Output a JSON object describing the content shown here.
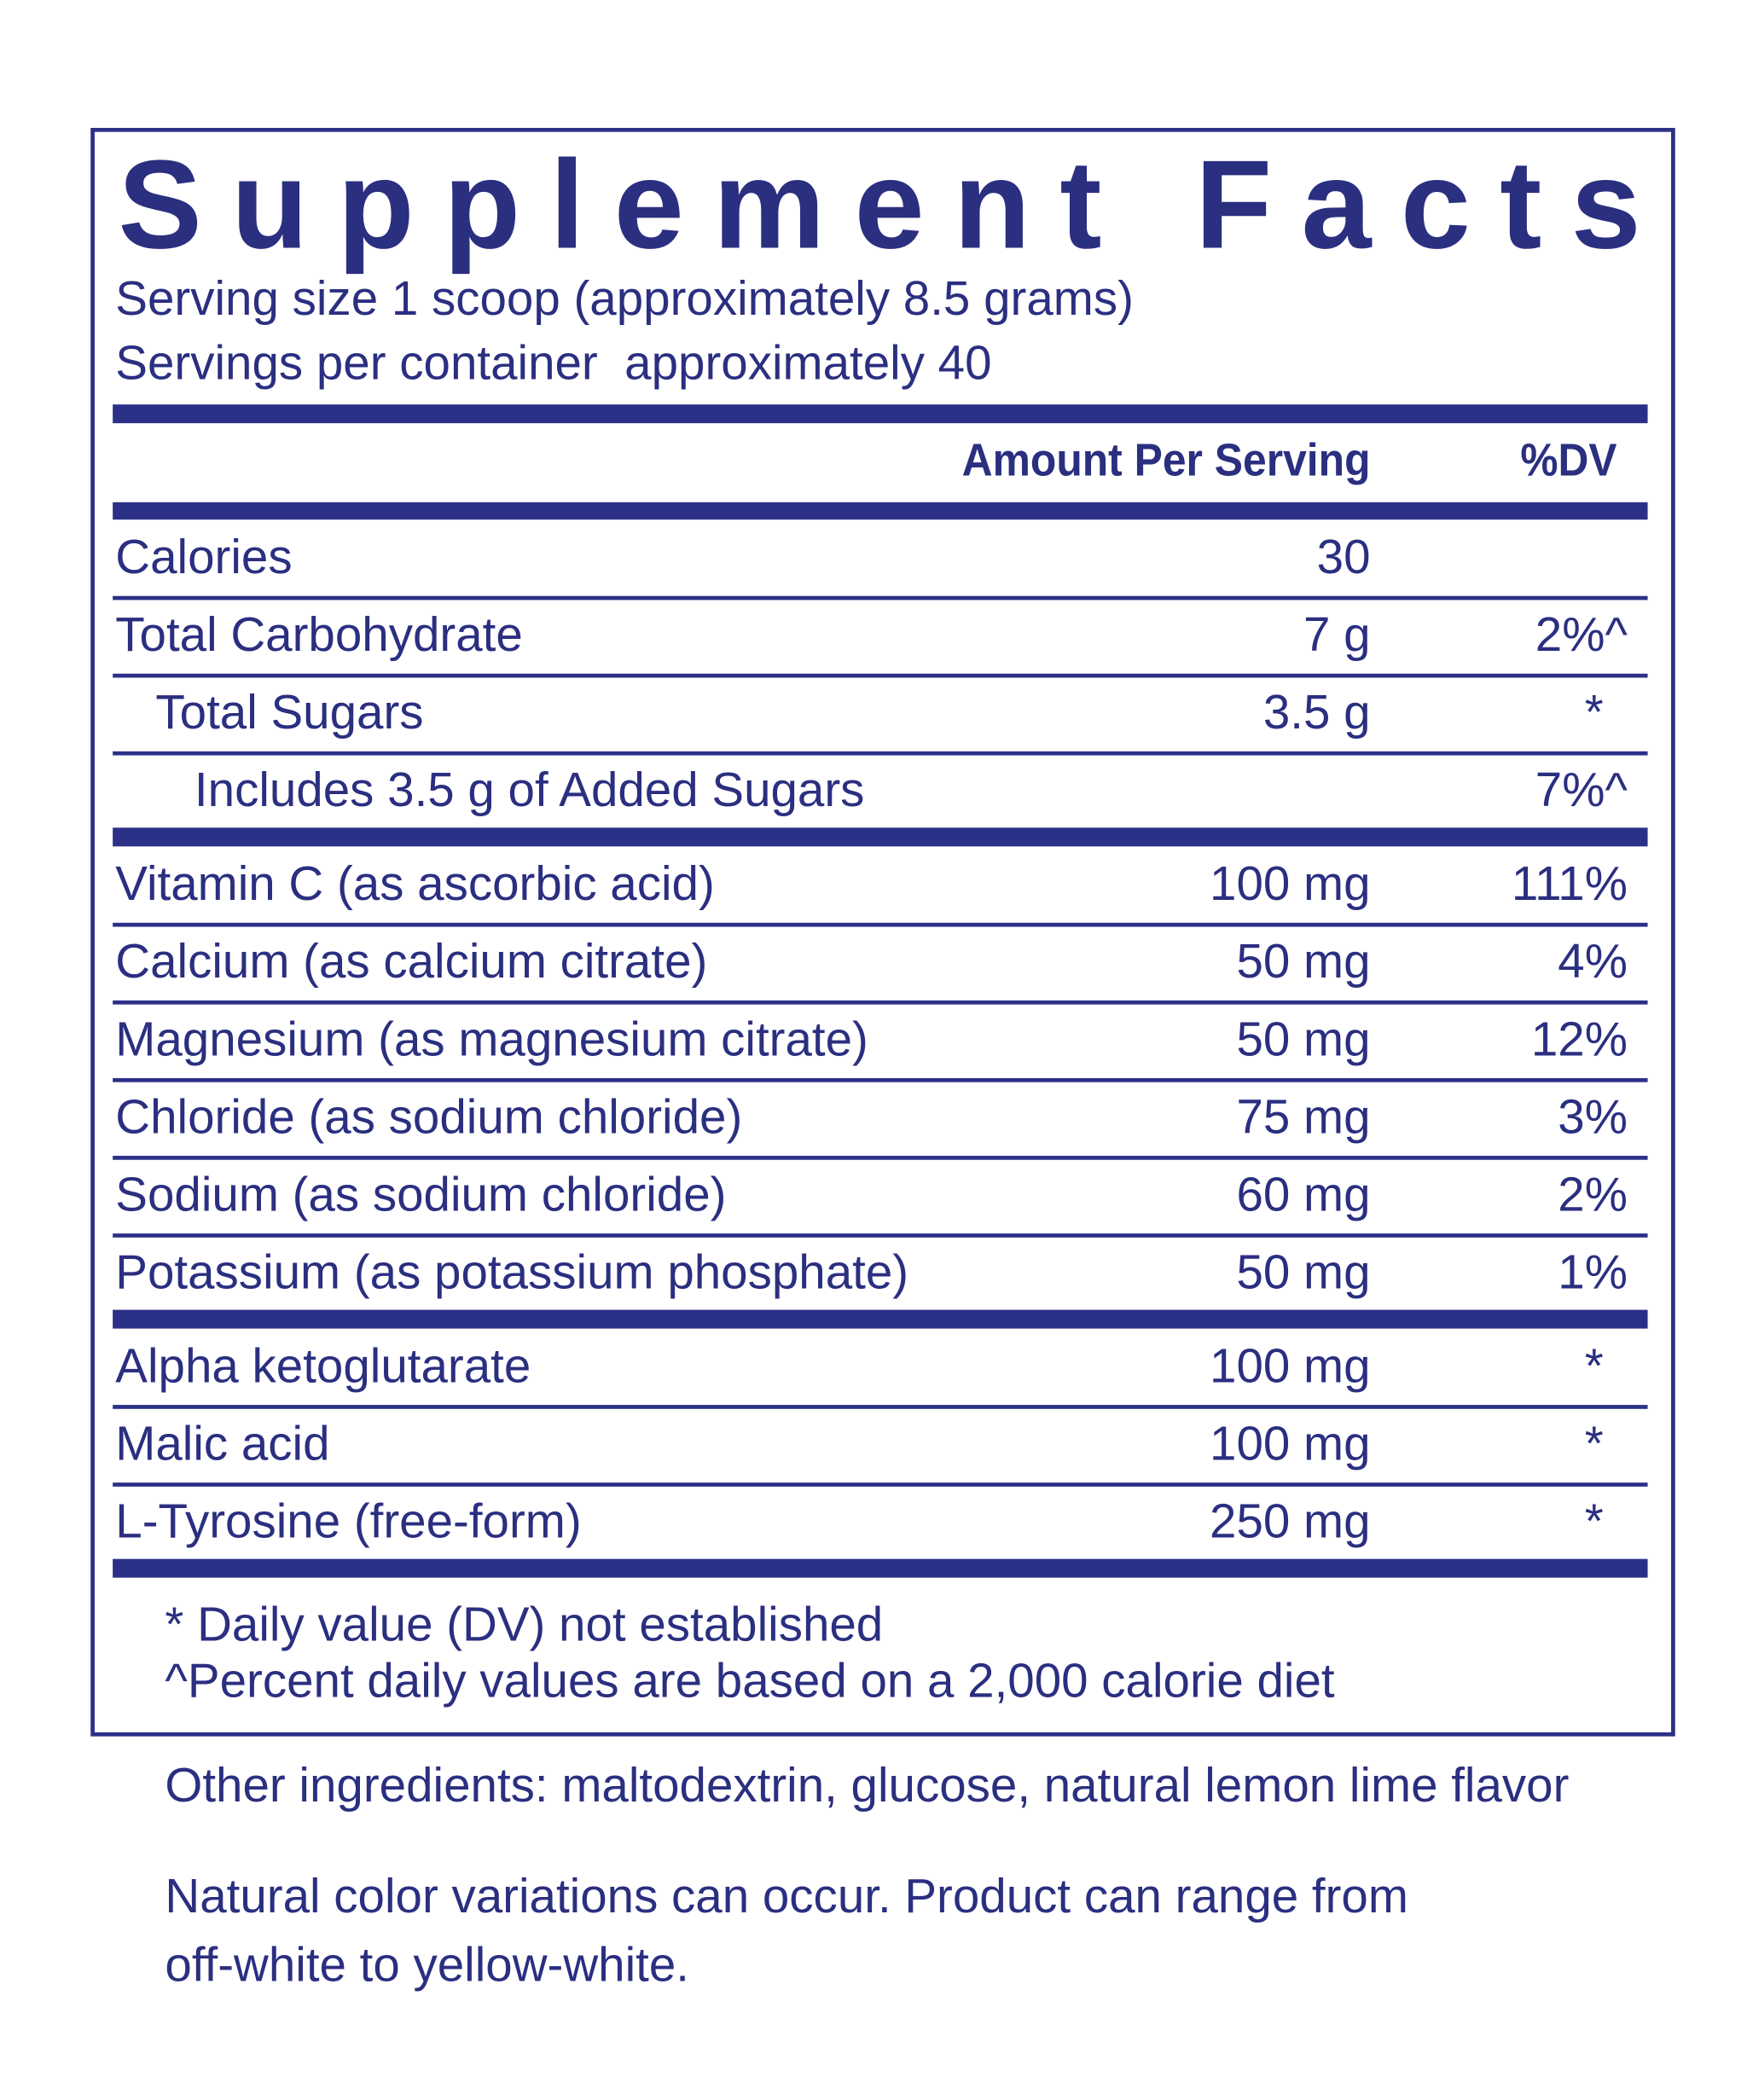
{
  "title": "Supplement Facts",
  "serving": [
    "Serving size 1 scoop (approximately 8.5 grams)",
    "Servings per container  approximately 40"
  ],
  "header": {
    "amount": "Amount Per Serving",
    "dv": "%DV"
  },
  "sections": [
    [
      {
        "name": "Calories",
        "amount": "30",
        "dv": null
      },
      {
        "name": "Total Carbohydrate",
        "amount": "7 g",
        "dv": "2%^"
      },
      {
        "name": "Total Sugars",
        "amount": "3.5 g",
        "dv": "*"
      },
      {
        "name": "Includes 3.5 g of Added Sugars",
        "amount": null,
        "dv": "7%^"
      }
    ],
    [
      {
        "name": "Vitamin C (as ascorbic acid)",
        "amount": "100 mg",
        "dv": "111%"
      },
      {
        "name": "Calcium (as calcium citrate)",
        "amount": "50 mg",
        "dv": "4%"
      },
      {
        "name": "Magnesium (as magnesium citrate)",
        "amount": "50 mg",
        "dv": "12%"
      },
      {
        "name": "Chloride (as sodium chloride)",
        "amount": "75 mg",
        "dv": "3%"
      },
      {
        "name": "Sodium (as sodium chloride)",
        "amount": "60 mg",
        "dv": "2%"
      },
      {
        "name": "Potassium (as potassium phosphate)",
        "amount": "50 mg",
        "dv": "1%"
      }
    ],
    [
      {
        "name": "Alpha ketoglutarate",
        "amount": "100 mg",
        "dv": "*"
      },
      {
        "name": "Malic acid",
        "amount": "100 mg",
        "dv": "*"
      },
      {
        "name": "L-Tyrosine (free-form)",
        "amount": "250 mg",
        "dv": "*"
      }
    ]
  ],
  "footnotes": [
    "* Daily value (DV) not established",
    "^Percent daily values are based on a 2,000 calorie diet"
  ],
  "other_ingredients": "Other ingredients: maltodextrin, glucose, natural lemon lime flavor",
  "note": [
    "Natural color variations can occur. Product can range from",
    "off-white to yellow-white."
  ]
}
